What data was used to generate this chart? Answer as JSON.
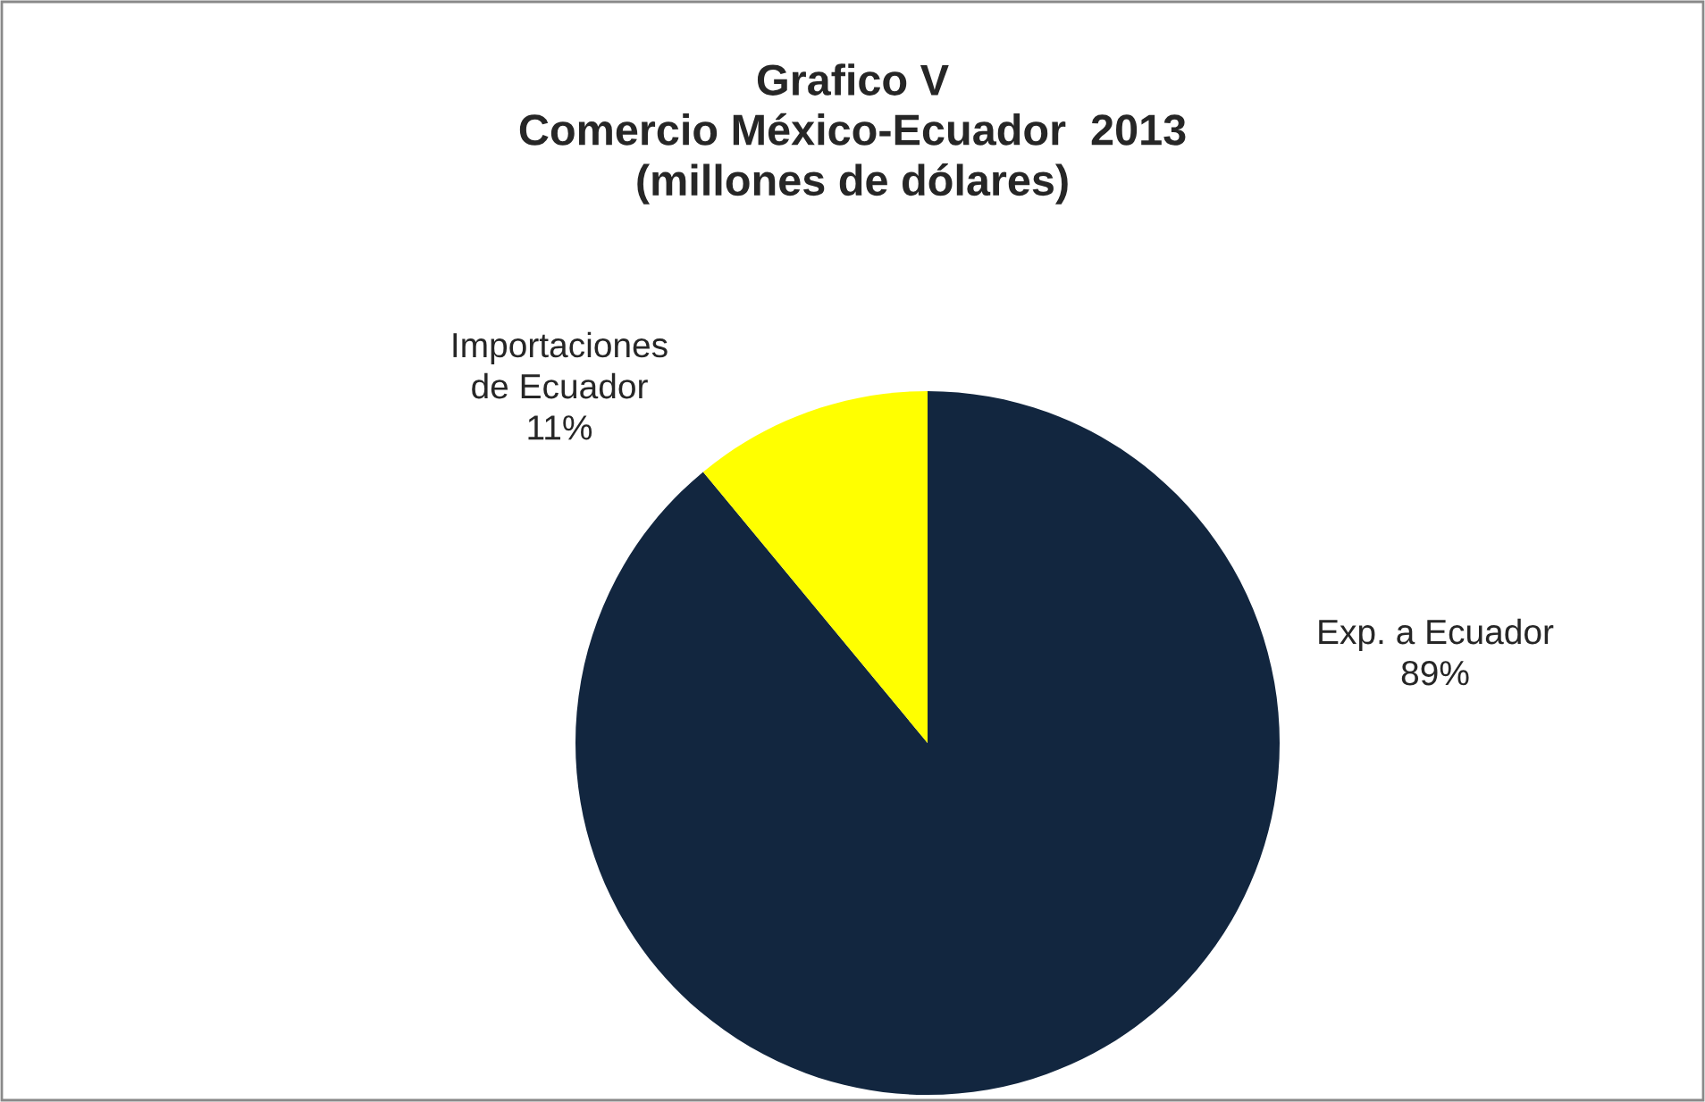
{
  "chart_data": {
    "type": "pie",
    "title": "Grafico V\nComercio México-Ecuador  2013\n(millones de dólares)",
    "categories": [
      "Exp. a Ecuador",
      "Importaciones\nde Ecuador"
    ],
    "values": [
      89,
      11
    ],
    "colors": [
      "#12263f",
      "#ffff00"
    ],
    "value_labels": [
      "89%",
      "11%"
    ],
    "legend": false
  }
}
